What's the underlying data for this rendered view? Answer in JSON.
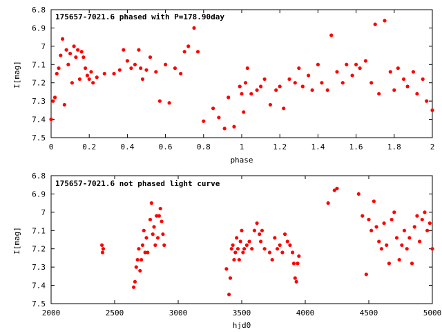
{
  "chart_data": [
    {
      "type": "scatter",
      "title": "175657-7021.6 phased with P=178.90day",
      "xlabel": "phase",
      "ylabel": "I[mag]",
      "xlim": [
        0,
        2
      ],
      "ylim": [
        6.8,
        7.5
      ],
      "y_inverted": true,
      "grid": false,
      "color": "#ff0000",
      "x_ticks": [
        0,
        0.2,
        0.4,
        0.6,
        0.8,
        1,
        1.2,
        1.4,
        1.6,
        1.8,
        2
      ],
      "x_tick_labels": [
        "0",
        "0.2",
        "0.4",
        "0.6",
        "0.8",
        "1",
        "1.2",
        "1.4",
        "1.6",
        "1.8",
        "2"
      ],
      "y_ticks": [
        6.8,
        6.9,
        7,
        7.1,
        7.2,
        7.3,
        7.4,
        7.5
      ],
      "y_tick_labels": [
        "6.8",
        "6.9",
        "7",
        "7.1",
        "7.2",
        "7.3",
        "7.4",
        "7.5"
      ],
      "series": [
        {
          "x": [
            0.0,
            0.01,
            0.02,
            0.03,
            0.04,
            0.05,
            0.06,
            0.07,
            0.08,
            0.09,
            0.1,
            0.11,
            0.12,
            0.13,
            0.14,
            0.15,
            0.16,
            0.17,
            0.18,
            0.19,
            0.2,
            0.21,
            0.22,
            0.24,
            0.28,
            0.33,
            0.36,
            0.38,
            0.4,
            0.42,
            0.44,
            0.46,
            0.47,
            0.48,
            0.5,
            0.52,
            0.55,
            0.57,
            0.6,
            0.62,
            0.65,
            0.68,
            0.7,
            0.72,
            0.75,
            0.77,
            0.8,
            0.85,
            0.88,
            0.91,
            0.93,
            0.96,
            0.99,
            1.0,
            1.01,
            1.02,
            1.03,
            1.05,
            1.08,
            1.1,
            1.12,
            1.15,
            1.18,
            1.2,
            1.22,
            1.25,
            1.28,
            1.3,
            1.32,
            1.35,
            1.37,
            1.4,
            1.42,
            1.45,
            1.47,
            1.5,
            1.53,
            1.55,
            1.58,
            1.6,
            1.62,
            1.65,
            1.68,
            1.7,
            1.72,
            1.75,
            1.78,
            1.8,
            1.82,
            1.85,
            1.87,
            1.9,
            1.92,
            1.95,
            1.97,
            2.0
          ],
          "y": [
            7.4,
            7.3,
            7.28,
            7.15,
            7.12,
            7.05,
            6.96,
            7.32,
            7.02,
            7.1,
            7.04,
            7.2,
            7.0,
            7.06,
            7.02,
            7.18,
            7.03,
            7.06,
            7.12,
            7.16,
            7.18,
            7.14,
            7.2,
            7.17,
            7.15,
            7.15,
            7.13,
            7.02,
            7.08,
            7.12,
            7.1,
            7.02,
            7.12,
            7.18,
            7.13,
            7.06,
            7.14,
            7.3,
            7.1,
            7.31,
            7.12,
            7.15,
            7.03,
            7.0,
            6.9,
            7.03,
            7.41,
            7.34,
            7.39,
            7.45,
            7.28,
            7.44,
            7.22,
            7.26,
            7.36,
            7.2,
            7.12,
            7.26,
            7.24,
            7.22,
            7.18,
            7.32,
            7.24,
            7.22,
            7.34,
            7.18,
            7.2,
            7.12,
            7.22,
            7.16,
            7.24,
            7.1,
            7.2,
            7.24,
            6.94,
            7.14,
            7.2,
            7.1,
            7.16,
            7.1,
            7.12,
            7.08,
            7.2,
            6.88,
            7.26,
            6.86,
            7.14,
            7.24,
            7.12,
            7.18,
            7.22,
            7.14,
            7.26,
            7.18,
            7.3,
            7.35
          ]
        }
      ]
    },
    {
      "type": "scatter",
      "title": "175657-7021.6 not phased light curve",
      "xlabel": "hjd0",
      "ylabel": "I[mag]",
      "xlim": [
        2000,
        5000
      ],
      "ylim": [
        6.8,
        7.5
      ],
      "y_inverted": true,
      "grid": false,
      "color": "#ff0000",
      "x_ticks": [
        2000,
        2500,
        3000,
        3500,
        4000,
        4500,
        5000
      ],
      "x_tick_labels": [
        "2000",
        "2500",
        "3000",
        "3500",
        "4000",
        "4500",
        "5000"
      ],
      "y_ticks": [
        6.8,
        6.9,
        7,
        7.1,
        7.2,
        7.3,
        7.4,
        7.5
      ],
      "y_tick_labels": [
        "6.8",
        "6.9",
        "7",
        "7.1",
        "7.2",
        "7.3",
        "7.4",
        "7.5"
      ],
      "series": [
        {
          "x": [
            2400,
            2405,
            2410,
            2650,
            2660,
            2670,
            2680,
            2690,
            2700,
            2710,
            2720,
            2730,
            2740,
            2750,
            2760,
            2780,
            2790,
            2800,
            2810,
            2820,
            2830,
            2840,
            2850,
            2860,
            2870,
            2880,
            2890,
            3380,
            3400,
            3410,
            3420,
            3430,
            3440,
            3450,
            3460,
            3470,
            3480,
            3490,
            3500,
            3510,
            3520,
            3540,
            3560,
            3580,
            3600,
            3620,
            3640,
            3650,
            3660,
            3680,
            3720,
            3740,
            3760,
            3780,
            3800,
            3820,
            3840,
            3860,
            3880,
            3900,
            3910,
            3920,
            3930,
            3940,
            3950,
            4180,
            4230,
            4250,
            4420,
            4450,
            4480,
            4500,
            4520,
            4540,
            4560,
            4580,
            4600,
            4620,
            4640,
            4660,
            4680,
            4700,
            4720,
            4740,
            4760,
            4780,
            4800,
            4820,
            4840,
            4860,
            4880,
            4900,
            4920,
            4940,
            4960,
            4980,
            5000
          ],
          "y": [
            7.18,
            7.22,
            7.2,
            7.41,
            7.38,
            7.3,
            7.26,
            7.2,
            7.32,
            7.26,
            7.18,
            7.1,
            7.22,
            7.14,
            7.22,
            7.04,
            6.95,
            7.12,
            7.08,
            7.18,
            7.02,
            7.14,
            7.02,
            6.98,
            7.05,
            7.12,
            7.18,
            7.31,
            7.45,
            7.36,
            7.2,
            7.18,
            7.26,
            7.22,
            7.14,
            7.2,
            7.26,
            7.16,
            7.1,
            7.22,
            7.2,
            7.18,
            7.16,
            7.2,
            7.1,
            7.06,
            7.12,
            7.16,
            7.1,
            7.2,
            7.22,
            7.26,
            7.14,
            7.2,
            7.18,
            7.22,
            7.12,
            7.16,
            7.18,
            7.22,
            7.28,
            7.36,
            7.38,
            7.28,
            7.24,
            6.95,
            6.88,
            6.87,
            6.9,
            7.02,
            7.34,
            7.04,
            7.1,
            6.94,
            7.08,
            7.16,
            7.2,
            7.06,
            7.18,
            7.28,
            7.04,
            7.0,
            7.14,
            7.26,
            7.18,
            7.1,
            7.2,
            7.14,
            7.28,
            7.08,
            7.02,
            7.16,
            7.04,
            7.0,
            7.1,
            7.06,
            7.2
          ]
        }
      ]
    }
  ]
}
